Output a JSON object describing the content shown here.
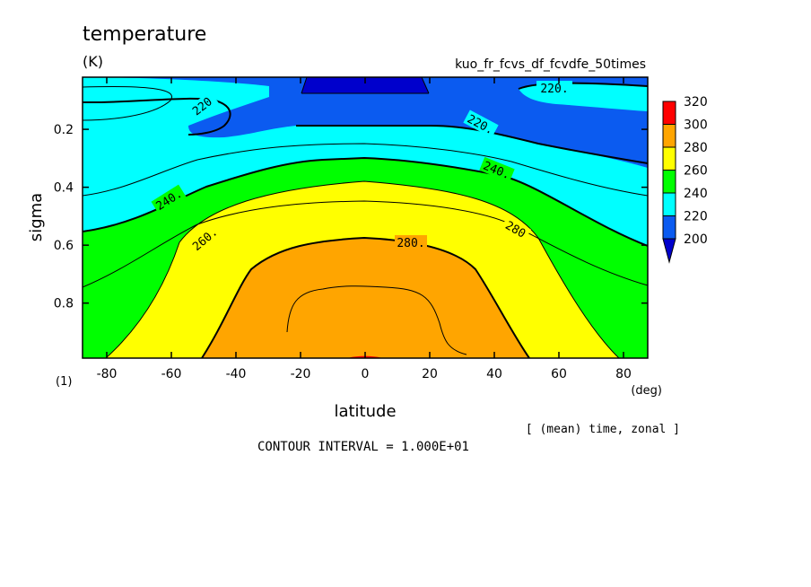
{
  "chart_data": {
    "type": "heatmap",
    "title": "temperature",
    "units": "(K)",
    "experiment": "kuo_fr_fcvs_df_fcvdfe_50times",
    "xlabel": "latitude",
    "ylabel": "sigma",
    "x_unit_note": "(deg)",
    "y_unit_note": "(1)",
    "xlim": [
      -87.5,
      87.5
    ],
    "ylim": [
      0.02,
      0.99
    ],
    "y_inverted": true,
    "x_ticks": [
      -80,
      -60,
      -40,
      -20,
      0,
      20,
      40,
      60,
      80
    ],
    "y_ticks": [
      0.2,
      0.4,
      0.6,
      0.8
    ],
    "tick_labels_x": [
      "-80",
      "-60",
      "-40",
      "-20",
      "0",
      "20",
      "40",
      "60",
      "80"
    ],
    "tick_labels_y": [
      "0.2",
      "0.4",
      "0.6",
      "0.8"
    ],
    "averaging_note": "[ (mean) time, zonal ]",
    "contour_note": "CONTOUR INTERVAL = 1.000E+01",
    "contour_labels": [
      "220",
      "220.",
      "220.",
      "240.",
      "240.",
      "260.",
      "280.",
      "280"
    ],
    "colorbar": {
      "levels": [
        "320",
        "300",
        "280",
        "260",
        "240",
        "220",
        "200"
      ],
      "colors": [
        "#ff0000",
        "#ffa500",
        "#ffff00",
        "#00ff00",
        "#00ffff",
        "#0b5bf0",
        "#0000cc"
      ]
    },
    "field_sigma": [
      0.02,
      0.2,
      0.4,
      0.6,
      0.8,
      0.99
    ],
    "field_lat": [
      -87.5,
      -80,
      -60,
      -40,
      -20,
      0,
      20,
      40,
      60,
      80,
      87.5
    ],
    "field_values_K": [
      [
        222,
        222,
        220,
        216,
        212,
        208,
        212,
        216,
        220,
        222,
        222
      ],
      [
        222,
        223,
        220,
        214,
        212,
        211,
        212,
        215,
        220,
        225,
        227
      ],
      [
        230,
        232,
        238,
        246,
        252,
        256,
        252,
        246,
        238,
        232,
        230
      ],
      [
        242,
        245,
        252,
        262,
        272,
        278,
        272,
        262,
        252,
        245,
        242
      ],
      [
        248,
        252,
        260,
        274,
        286,
        292,
        286,
        274,
        260,
        252,
        248
      ],
      [
        253,
        257,
        268,
        282,
        294,
        300,
        294,
        282,
        268,
        257,
        253
      ]
    ]
  }
}
